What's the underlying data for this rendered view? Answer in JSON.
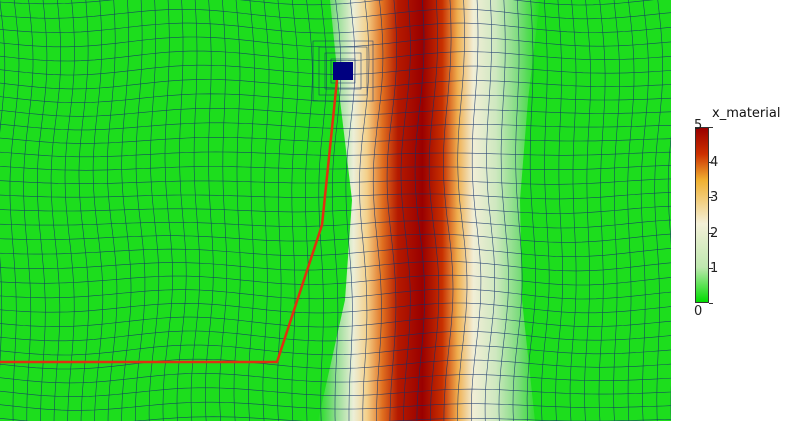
{
  "legend": {
    "title": "x_material",
    "ticks": [
      {
        "value": 0,
        "label": "0"
      },
      {
        "value": 1,
        "label": "1"
      },
      {
        "value": 2,
        "label": "2"
      },
      {
        "value": 3,
        "label": "3"
      },
      {
        "value": 4,
        "label": "4"
      },
      {
        "value": 5,
        "label": "5"
      }
    ],
    "range": [
      0,
      5
    ],
    "colormap": [
      {
        "stop": 0.0,
        "color": "#00dd00"
      },
      {
        "stop": 0.2,
        "color": "#bfe8b0"
      },
      {
        "stop": 0.45,
        "color": "#f4f0d8"
      },
      {
        "stop": 0.7,
        "color": "#f0b030"
      },
      {
        "stop": 0.85,
        "color": "#cc3000"
      },
      {
        "stop": 1.0,
        "color": "#990000"
      }
    ]
  },
  "scene": {
    "background_color": "#1ddd1d",
    "mesh_line_color": "#12306a",
    "path_color": "#e03010",
    "marker_color": "#000080"
  }
}
